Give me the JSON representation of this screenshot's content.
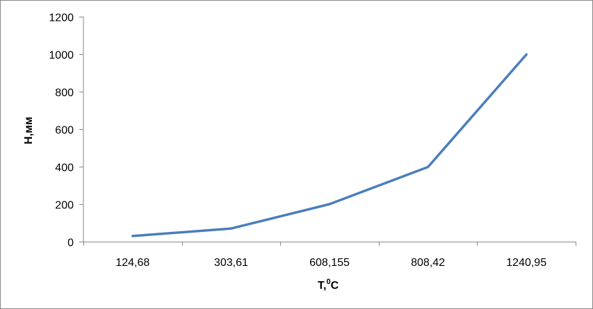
{
  "chart_data": {
    "type": "line",
    "title": "",
    "categories": [
      "124,68",
      "303,61",
      "608,155",
      "808,42",
      "1240,95"
    ],
    "series": [
      {
        "values": [
          30,
          70,
          200,
          398,
          998
        ],
        "color": "#4a7ebb"
      }
    ],
    "xlabel": "Т,",
    "xlabel_sup": "0",
    "xlabel_suffix": "С",
    "ylabel": "Н,мм",
    "ylim": [
      0,
      1200
    ],
    "yticks": [
      "0",
      "200",
      "400",
      "600",
      "800",
      "1000",
      "1200"
    ],
    "grid": false,
    "legend": "none"
  }
}
